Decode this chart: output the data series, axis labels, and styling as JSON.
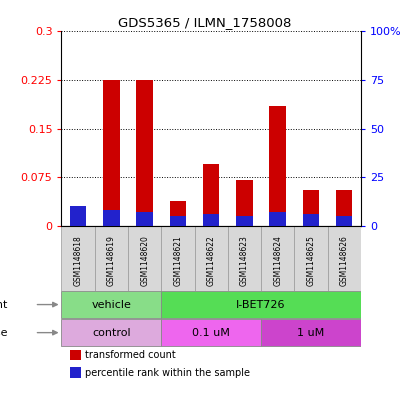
{
  "title": "GDS5365 / ILMN_1758008",
  "samples": [
    "GSM1148618",
    "GSM1148619",
    "GSM1148620",
    "GSM1148621",
    "GSM1148622",
    "GSM1148623",
    "GSM1148624",
    "GSM1148625",
    "GSM1148626"
  ],
  "transformed_count": [
    0.03,
    0.225,
    0.225,
    0.038,
    0.095,
    0.07,
    0.185,
    0.055,
    0.055
  ],
  "percentile_rank_pct": [
    10,
    8,
    7,
    5,
    6,
    5,
    7,
    6,
    5
  ],
  "ylim_left": [
    0,
    0.3
  ],
  "ylim_right": [
    0,
    100
  ],
  "yticks_left": [
    0,
    0.075,
    0.15,
    0.225,
    0.3
  ],
  "ytick_labels_left": [
    "0",
    "0.075",
    "0.15",
    "0.225",
    "0.3"
  ],
  "yticks_right": [
    0,
    25,
    50,
    75,
    100
  ],
  "ytick_labels_right": [
    "0",
    "25",
    "50",
    "75",
    "100%"
  ],
  "bar_color_red": "#cc0000",
  "bar_color_blue": "#2222cc",
  "bar_width": 0.5,
  "agent_vehicle_color": "#88dd88",
  "agent_ibet_color": "#55dd55",
  "dose_control_color": "#ddaadd",
  "dose_01_color": "#ee66ee",
  "dose_1_color": "#cc44cc",
  "legend_red": "transformed count",
  "legend_blue": "percentile rank within the sample",
  "background_color": "#ffffff",
  "plot_bg": "#ffffff",
  "grid_color": "#000000",
  "sample_bg": "#d8d8d8"
}
